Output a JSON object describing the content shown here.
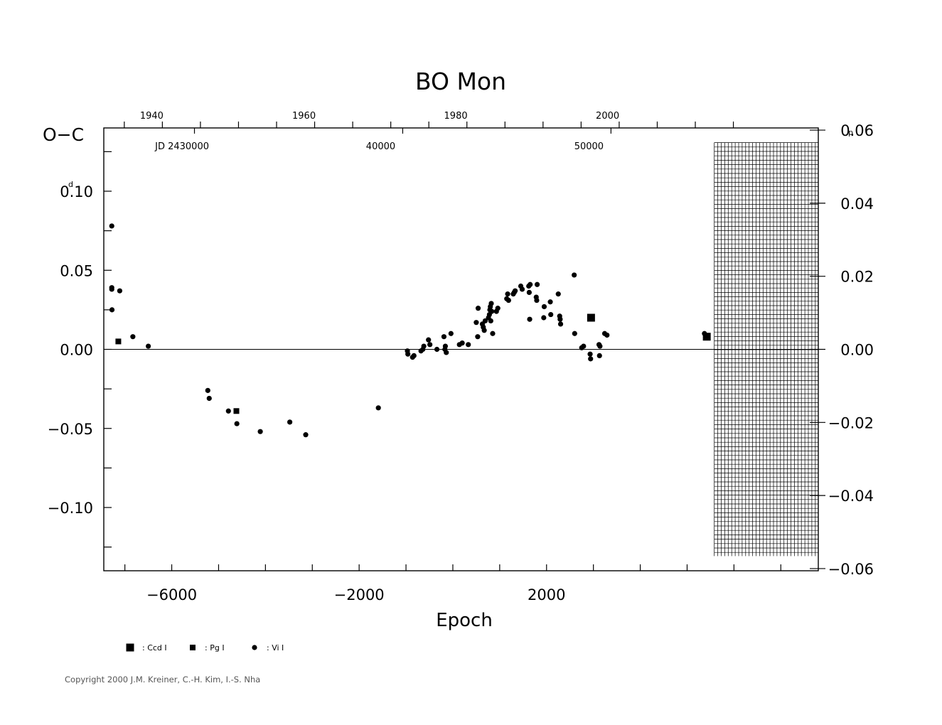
{
  "chart_data": {
    "type": "scatter",
    "title": "BO  Mon",
    "xlabel": "Epoch",
    "ylabel": "O−C",
    "y_unit_left": "d",
    "y_unit_right": "p",
    "xlim": [
      -7450,
      7800
    ],
    "ylim": [
      -0.14,
      0.14
    ],
    "right_ylim": [
      -0.0606,
      0.0606
    ],
    "x_ticks": [
      -6000,
      -2000,
      2000
    ],
    "x_tick_labels": [
      "−6000",
      "−2000",
      "2000"
    ],
    "y_ticks": [
      -0.1,
      -0.05,
      0.0,
      0.05,
      0.1
    ],
    "y_tick_labels": [
      "−0.10",
      "−0.05",
      "0.00",
      "0.05",
      "0.10"
    ],
    "right_ticks": [
      -0.06,
      -0.04,
      -0.02,
      0.0,
      0.02,
      0.04,
      0.06
    ],
    "right_tick_labels": [
      "−0.06",
      "−0.04",
      "−0.02",
      "0.00",
      "0.02",
      "0.04",
      "0.06"
    ],
    "top_year_ticks": [
      1940,
      1960,
      1980,
      2000
    ],
    "top_year_labels": [
      "1940",
      "1960",
      "1980",
      "2000"
    ],
    "top_year_epochs": [
      -6200,
      -2950,
      290,
      3530
    ],
    "jd_labels": [
      {
        "text": "JD  2430000",
        "epoch": -5780
      },
      {
        "text": "40000",
        "epoch": -1540
      },
      {
        "text": "50000",
        "epoch": 2905
      }
    ],
    "hatched_region_start": 5580,
    "zero_line": true,
    "legend": [
      {
        "symbol": "large-square",
        "label": ": Ccd  I"
      },
      {
        "symbol": "small-square",
        "label": ": Pg  I"
      },
      {
        "symbol": "circle",
        "label": ": Vi  I"
      }
    ],
    "series": [
      {
        "name": ": Ccd  I",
        "marker": "large-square",
        "points": [
          [
            2950,
            0.02
          ],
          [
            5420,
            0.008
          ]
        ]
      },
      {
        "name": ": Pg  I",
        "marker": "small-square",
        "points": [
          [
            -7140,
            0.005
          ],
          [
            -4620,
            -0.039
          ]
        ]
      },
      {
        "name": ": Vi  I",
        "marker": "circle",
        "points": [
          [
            -7280,
            0.078
          ],
          [
            -7280,
            0.039
          ],
          [
            -7280,
            0.038
          ],
          [
            -7275,
            0.025
          ],
          [
            -7110,
            0.037
          ],
          [
            -6830,
            0.008
          ],
          [
            -6500,
            0.002
          ],
          [
            -5230,
            -0.026
          ],
          [
            -5200,
            -0.031
          ],
          [
            -4790,
            -0.039
          ],
          [
            -4610,
            -0.047
          ],
          [
            -4110,
            -0.052
          ],
          [
            -3480,
            -0.046
          ],
          [
            -3140,
            -0.054
          ],
          [
            -1590,
            -0.037
          ],
          [
            -970,
            -0.001
          ],
          [
            -960,
            -0.003
          ],
          [
            -860,
            -0.005
          ],
          [
            -830,
            -0.004
          ],
          [
            -680,
            -0.001
          ],
          [
            -640,
            0.0
          ],
          [
            -620,
            0.002
          ],
          [
            -520,
            0.006
          ],
          [
            -490,
            0.003
          ],
          [
            -340,
            0.0
          ],
          [
            -190,
            0.008
          ],
          [
            -170,
            0.0
          ],
          [
            -160,
            0.002
          ],
          [
            -140,
            -0.002
          ],
          [
            -40,
            0.01
          ],
          [
            140,
            0.003
          ],
          [
            200,
            0.004
          ],
          [
            330,
            0.003
          ],
          [
            500,
            0.017
          ],
          [
            530,
            0.008
          ],
          [
            540,
            0.026
          ],
          [
            630,
            0.016
          ],
          [
            650,
            0.014
          ],
          [
            670,
            0.012
          ],
          [
            690,
            0.018
          ],
          [
            760,
            0.02
          ],
          [
            780,
            0.022
          ],
          [
            790,
            0.025
          ],
          [
            800,
            0.027
          ],
          [
            810,
            0.018
          ],
          [
            820,
            0.029
          ],
          [
            830,
            0.024
          ],
          [
            850,
            0.01
          ],
          [
            930,
            0.024
          ],
          [
            960,
            0.026
          ],
          [
            1150,
            0.032
          ],
          [
            1170,
            0.035
          ],
          [
            1190,
            0.031
          ],
          [
            1290,
            0.035
          ],
          [
            1310,
            0.036
          ],
          [
            1330,
            0.037
          ],
          [
            1450,
            0.04
          ],
          [
            1480,
            0.038
          ],
          [
            1620,
            0.04
          ],
          [
            1630,
            0.036
          ],
          [
            1640,
            0.019
          ],
          [
            1650,
            0.041
          ],
          [
            1780,
            0.033
          ],
          [
            1790,
            0.031
          ],
          [
            1800,
            0.041
          ],
          [
            1940,
            0.02
          ],
          [
            1950,
            0.027
          ],
          [
            2080,
            0.03
          ],
          [
            2090,
            0.022
          ],
          [
            2250,
            0.035
          ],
          [
            2280,
            0.021
          ],
          [
            2290,
            0.019
          ],
          [
            2300,
            0.016
          ],
          [
            2590,
            0.047
          ],
          [
            2600,
            0.01
          ],
          [
            2750,
            0.001
          ],
          [
            2790,
            0.002
          ],
          [
            2930,
            -0.003
          ],
          [
            2940,
            -0.006
          ],
          [
            3120,
            0.003
          ],
          [
            3130,
            -0.004
          ],
          [
            3140,
            0.002
          ],
          [
            3240,
            0.01
          ],
          [
            3290,
            0.009
          ],
          [
            5370,
            0.01
          ],
          [
            5400,
            0.009
          ]
        ]
      }
    ]
  },
  "copyright": "Copyright 2000 J.M. Kreiner, C.-H. Kim, I.-S. Nha"
}
